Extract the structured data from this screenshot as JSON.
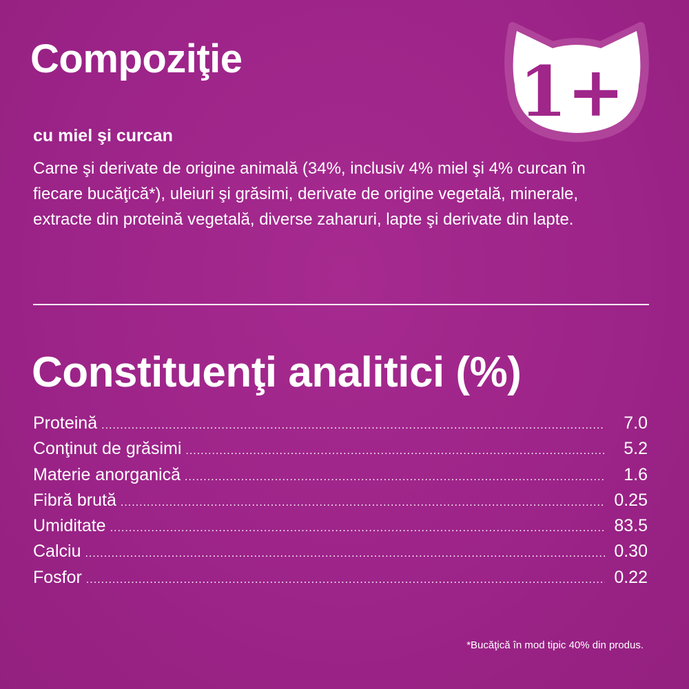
{
  "composition": {
    "title": "Compoziţie",
    "badge": "1+",
    "variant": "cu miel şi curcan",
    "ingredients": "Carne şi derivate de origine animală (34%, inclusiv 4% miel şi 4% curcan în fiecare bucăţică*), uleiuri şi grăsimi, derivate de origine vegetală, minerale, extracte din proteină vegetală, diverse zaharuri, lapte şi derivate din lapte."
  },
  "analytics": {
    "title": "Constituenţi analitici (%)",
    "rows": [
      {
        "label": "Proteină",
        "value": "7.0"
      },
      {
        "label": "Conţinut de grăsimi",
        "value": "5.2"
      },
      {
        "label": "Materie anorganică",
        "value": "1.6"
      },
      {
        "label": "Fibră brută",
        "value": "0.25"
      },
      {
        "label": "Umiditate",
        "value": "83.5"
      },
      {
        "label": "Calciu",
        "value": "0.30"
      },
      {
        "label": "Fosfor",
        "value": "0.22"
      }
    ]
  },
  "footnote": "*Bucăţică în mod tipic 40% din produs.",
  "colors": {
    "background": "#A0268A",
    "text": "#FFFFFF"
  }
}
